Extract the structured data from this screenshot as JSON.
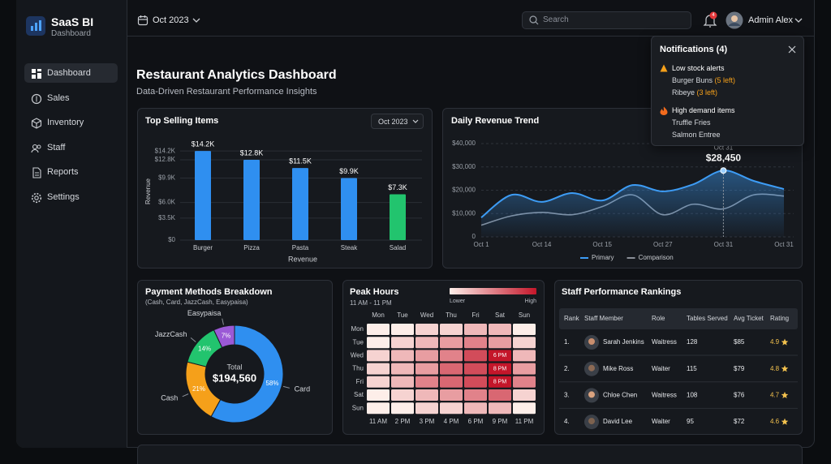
{
  "sidebar": {
    "brand": "SaaS BI",
    "brand_sub": "Dashboard",
    "nav": [
      "Dashboard",
      "Sales",
      "Inventory",
      "Staff",
      "Reports",
      "Settings"
    ],
    "active": 0
  },
  "topbar": {
    "period": "Oct 2023",
    "search_placeholder": "Search",
    "badge": "4",
    "user": "Admin Alex"
  },
  "notifications": {
    "title": "Notifications (4)",
    "groups": [
      {
        "title": "Low stock alerts",
        "items": [
          {
            "name": "Burger Buns",
            "note": "(5 left)"
          },
          {
            "name": "Ribeye",
            "note": "(3 left)"
          }
        ]
      },
      {
        "title": "High demand items",
        "items": [
          {
            "name": "Truffle Fries"
          },
          {
            "name": "Salmon Entree"
          }
        ]
      }
    ]
  },
  "header": {
    "title": "Restaurant Analytics Dashboard",
    "subtitle": "Data-Driven Restaurant Performance Insights"
  },
  "top_selling": {
    "type": "bar",
    "title": "Top Selling Items",
    "filter": "Oct 2023",
    "x_label": "Revenue",
    "y_label": "Revenue",
    "categories": [
      "Burger",
      "Pizza",
      "Pasta",
      "Steak",
      "Salad"
    ],
    "values": [
      14200,
      12800,
      11500,
      9900,
      7300
    ],
    "value_labels": [
      "$14.2K",
      "$12.8K",
      "$11.5K",
      "$9.9K",
      "$7.3K"
    ],
    "colors": [
      "#2f8ff0",
      "#2f8ff0",
      "#2f8ff0",
      "#2f8ff0",
      "#22c46e"
    ],
    "ylim": [
      0,
      15000
    ],
    "yticks": [
      {
        "value": 0,
        "label": "$0"
      },
      {
        "value": 3500,
        "label": "$3.5K"
      },
      {
        "value": 6000,
        "label": "$6.0K"
      },
      {
        "value": 9900,
        "label": "$9.9K"
      },
      {
        "value": 12800,
        "label": "$12.8K"
      },
      {
        "value": 14200,
        "label": "$14.2K"
      }
    ],
    "grid": true
  },
  "revenue_trend": {
    "type": "line",
    "title": "Daily Revenue Trend",
    "categories": [
      "Oct 1",
      null,
      "Oct 14",
      null,
      "Oct 15",
      null,
      "Oct 27",
      null,
      "Oct 31",
      null,
      "Oct 31"
    ],
    "series": [
      {
        "name": "Primary",
        "color": "#3d9cf5",
        "values": [
          8300,
          18000,
          15000,
          18800,
          15600,
          22200,
          19500,
          22500,
          28450,
          24000,
          20500
        ],
        "value_labels": [
          null,
          null,
          null,
          null,
          null,
          null,
          null,
          null,
          "$28,450",
          null,
          null
        ]
      },
      {
        "name": "Comparison",
        "color": "#8a8f98",
        "values": [
          5000,
          9000,
          10500,
          9500,
          13000,
          18000,
          9500,
          14000,
          12000,
          18000,
          17500
        ]
      }
    ],
    "ylim": [
      0,
      40000
    ],
    "yticks": [
      0,
      {
        "value": 10000,
        "label": "$10,000"
      },
      {
        "value": 20000,
        "label": "$20,000"
      },
      {
        "value": 30000,
        "label": "$30,000"
      },
      {
        "value": 40000,
        "label": "$40,000"
      }
    ],
    "grid": true
  },
  "payments": {
    "type": "donut",
    "title": "Payment Methods Breakdown",
    "subtitle": "(Cash, Card, JazzCash, Easypaisa)",
    "categories": [
      "Card",
      "Cash",
      "JazzCash",
      "Easypaisa"
    ],
    "values": [
      58,
      21,
      14,
      7
    ],
    "value_labels": [
      "58%",
      "21%",
      "14%",
      "7%"
    ],
    "colors": [
      "#2f8ff0",
      "#f5a01a",
      "#22c46e",
      "#9b59d6"
    ],
    "center_label": "Total",
    "center_value": "$194,560"
  },
  "peak_hours": {
    "type": "heatmap",
    "title": "Peak Hours",
    "subtitle": "11 AM - 11 PM",
    "legend_low": "Lower",
    "legend_high": "High",
    "columns": [
      "Mon",
      "Tue",
      "Wed",
      "Thu",
      "Fri",
      "Sat",
      "Sun"
    ],
    "rows": [
      "Mon",
      "Tue",
      "Wed",
      "Thu",
      "Fri",
      "Sat",
      "Sun"
    ],
    "x_labels": [
      "11 AM",
      "2 PM",
      "3 PM",
      "4 PM",
      "6 PM",
      "9 PM",
      "11 PM"
    ],
    "values": [
      [
        1,
        1,
        2,
        2,
        3,
        3,
        1
      ],
      [
        1,
        2,
        3,
        4,
        5,
        4,
        2
      ],
      [
        2,
        3,
        4,
        5,
        7,
        9,
        3
      ],
      [
        2,
        3,
        4,
        6,
        7,
        9,
        4
      ],
      [
        2,
        3,
        5,
        6,
        7,
        9,
        5
      ],
      [
        1,
        2,
        3,
        4,
        5,
        6,
        2
      ],
      [
        1,
        1,
        2,
        2,
        3,
        3,
        1
      ]
    ],
    "cell_labels": [
      [
        null,
        null,
        null,
        null,
        null,
        null,
        null
      ],
      [
        null,
        null,
        null,
        null,
        null,
        null,
        null
      ],
      [
        null,
        null,
        null,
        null,
        null,
        "6 PM",
        null
      ],
      [
        null,
        null,
        null,
        null,
        null,
        "8 PM",
        null
      ],
      [
        null,
        null,
        null,
        null,
        null,
        "8 PM",
        null
      ],
      [
        null,
        null,
        null,
        null,
        null,
        null,
        null
      ],
      [
        null,
        null,
        null,
        null,
        null,
        null,
        null
      ]
    ],
    "color_low": "#fdeee9",
    "color_high": "#c4162a"
  },
  "staff": {
    "title": "Staff Performance Rankings",
    "columns": [
      "Rank",
      "Staff Member",
      "Role",
      "Tables Served",
      "Avg Ticket",
      "Rating"
    ],
    "rows": [
      [
        "1.",
        "Sarah Jenkins",
        "Waitress",
        "128",
        "$85",
        "4.9"
      ],
      [
        "2.",
        "Mike Ross",
        "Waiter",
        "115",
        "$79",
        "4.8"
      ],
      [
        "3.",
        "Chloe Chen",
        "Waitress",
        "108",
        "$76",
        "4.7"
      ],
      [
        "4.",
        "David Lee",
        "Waiter",
        "95",
        "$72",
        "4.6"
      ]
    ]
  }
}
